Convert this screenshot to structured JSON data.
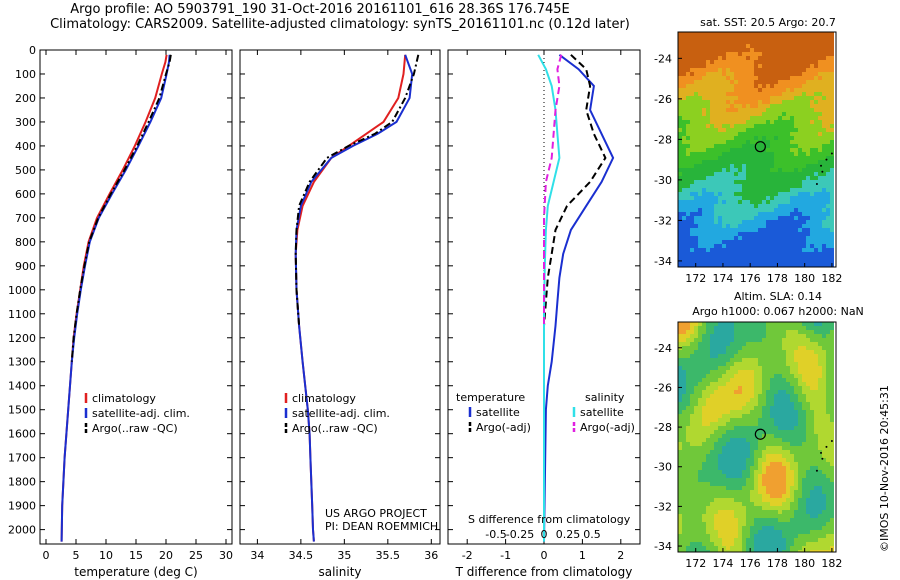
{
  "header": {
    "line1": "Argo profile: AO 5903791_190 31-Oct-2016 20161101_616 28.36S 176.745E",
    "line2": "Climatology: CARS2009. Satellite-adjusted climatology: synTS_20161101.nc (0.12d later)"
  },
  "credit": "©IMOS 10-Nov-2016 20:45:31",
  "colors": {
    "climatology": "#e02020",
    "satellite": "#1a2fd0",
    "argo": "#000000",
    "sal_satellite": "#30e0e8",
    "sal_argo": "#e020e0"
  },
  "chart_data": [
    {
      "id": "temperature",
      "type": "line",
      "xlabel": "temperature (deg C)",
      "ylabel": "",
      "xlim": [
        -1,
        31
      ],
      "ylim": [
        2060,
        0
      ],
      "xticks": [
        0,
        5,
        10,
        15,
        20,
        25,
        30
      ],
      "yticks": [
        0,
        100,
        200,
        300,
        400,
        500,
        600,
        700,
        800,
        900,
        1000,
        1100,
        1200,
        1300,
        1400,
        1500,
        1600,
        1700,
        1800,
        1900,
        2000
      ],
      "legend": [
        "climatology",
        "satellite-adj. clim.",
        "Argo(..raw -QC)"
      ],
      "series": [
        {
          "name": "climatology",
          "style": "solid",
          "color": "climatology",
          "x": [
            20.1,
            19.9,
            19.3,
            18.2,
            16.6,
            14.8,
            12.8,
            10.6,
            8.5,
            7.1,
            6.3,
            5.7,
            5.1,
            4.6,
            4.3,
            4.0,
            3.7,
            3.4,
            3.1,
            2.9,
            2.7,
            2.6
          ],
          "y": [
            20,
            50,
            100,
            200,
            300,
            400,
            500,
            600,
            700,
            800,
            900,
            1000,
            1100,
            1200,
            1300,
            1400,
            1500,
            1600,
            1700,
            1800,
            1900,
            2050
          ]
        },
        {
          "name": "satellite-adj. clim.",
          "style": "solid",
          "color": "satellite",
          "x": [
            20.6,
            20.5,
            20.1,
            19.2,
            17.4,
            15.4,
            13.3,
            11.0,
            8.8,
            7.3,
            6.5,
            5.8,
            5.2,
            4.7,
            4.3,
            4.0,
            3.7,
            3.4,
            3.1,
            2.9,
            2.7,
            2.6
          ],
          "y": [
            20,
            50,
            100,
            200,
            300,
            400,
            500,
            600,
            700,
            800,
            900,
            1000,
            1100,
            1200,
            1300,
            1400,
            1500,
            1600,
            1700,
            1800,
            1900,
            2050
          ]
        },
        {
          "name": "Argo(..raw -QC)",
          "style": "dashdot",
          "color": "argo",
          "x": [
            20.8,
            20.6,
            20.0,
            18.9,
            17.1,
            15.2,
            13.1,
            10.8,
            8.7,
            7.2,
            6.4,
            5.7,
            5.1,
            4.6,
            4.3
          ],
          "y": [
            20,
            50,
            100,
            200,
            300,
            400,
            500,
            600,
            700,
            800,
            900,
            1000,
            1100,
            1200,
            1300
          ]
        }
      ]
    },
    {
      "id": "salinity",
      "type": "line",
      "xlabel": "salinity",
      "ylabel": "",
      "xlim": [
        33.8,
        36.1
      ],
      "ylim": [
        2060,
        0
      ],
      "xticks": [
        34,
        34.5,
        35,
        35.5,
        36
      ],
      "xtick_labels": [
        "34",
        "34.5",
        "35",
        "35.5",
        "36"
      ],
      "legend": [
        "climatology",
        "satellite-adj. clim.",
        "Argo(..raw -QC)"
      ],
      "series": [
        {
          "name": "climatology",
          "style": "solid",
          "color": "climatology",
          "x": [
            35.7,
            35.68,
            35.62,
            35.45,
            35.25,
            35.05,
            34.85,
            34.65,
            34.52,
            34.46,
            34.44,
            34.45,
            34.48,
            34.52,
            34.55,
            34.58,
            34.6,
            34.61,
            34.62,
            34.63,
            34.64,
            34.65
          ],
          "y": [
            20,
            100,
            200,
            300,
            350,
            400,
            450,
            550,
            650,
            750,
            850,
            1000,
            1150,
            1300,
            1400,
            1500,
            1600,
            1700,
            1800,
            1900,
            2000,
            2050
          ]
        },
        {
          "name": "satellite-adj. clim.",
          "style": "solid",
          "color": "satellite",
          "x": [
            35.7,
            35.78,
            35.75,
            35.6,
            35.38,
            35.1,
            34.85,
            34.62,
            34.5,
            34.45,
            34.44,
            34.45,
            34.48,
            34.52,
            34.55,
            34.58,
            34.6,
            34.61,
            34.62,
            34.63,
            34.64,
            34.65
          ],
          "y": [
            20,
            100,
            200,
            300,
            350,
            400,
            450,
            550,
            650,
            750,
            850,
            1000,
            1150,
            1300,
            1400,
            1500,
            1600,
            1700,
            1800,
            1900,
            2000,
            2050
          ]
        },
        {
          "name": "Argo(..raw -QC)",
          "style": "dashdot",
          "color": "argo",
          "x": [
            35.85,
            35.8,
            35.7,
            35.55,
            35.35,
            35.05,
            34.8,
            34.6,
            34.48,
            34.45,
            34.44,
            34.45,
            34.48
          ],
          "y": [
            20,
            100,
            200,
            300,
            350,
            400,
            450,
            550,
            650,
            750,
            850,
            1000,
            1150
          ]
        }
      ],
      "annotation_lines": [
        "US ARGO PROJECT",
        "PI: DEAN ROEMMICH"
      ]
    },
    {
      "id": "difference",
      "type": "line",
      "xlabel": "T difference from climatology",
      "xlabel_top": "S difference from climatology",
      "xlim": [
        -2.5,
        2.5
      ],
      "ylim": [
        2060,
        0
      ],
      "xticks": [
        -2,
        -1,
        0,
        1,
        2
      ],
      "xtick_labels": [
        "-2",
        "-1",
        "0",
        "1",
        "2"
      ],
      "sticks": [
        -0.5,
        -0.25,
        0,
        0.25,
        0.5
      ],
      "stick_labels": [
        "-0.5",
        "-0.25",
        "0",
        "0.25",
        "0.5"
      ],
      "legend_temperature_title": "temperature",
      "legend_salinity_title": "salinity",
      "legend_temperature": [
        "satellite",
        "Argo(-adj)"
      ],
      "legend_salinity": [
        "satellite",
        "Argo(-adj)"
      ],
      "series": [
        {
          "name": "T satellite",
          "style": "solid",
          "color": "satellite",
          "x": [
            0.4,
            0.9,
            1.3,
            1.2,
            1.5,
            1.8,
            1.5,
            1.1,
            0.7,
            0.5,
            0.4,
            0.35,
            0.3,
            0.2,
            0.1,
            0.05,
            0.0
          ],
          "y": [
            20,
            80,
            150,
            250,
            350,
            450,
            550,
            650,
            750,
            850,
            950,
            1050,
            1150,
            1300,
            1400,
            1500,
            2050
          ]
        },
        {
          "name": "T Argo(-adj)",
          "style": "dashed",
          "color": "argo",
          "x": [
            0.7,
            1.1,
            1.2,
            1.1,
            1.3,
            1.6,
            1.2,
            0.6,
            0.3,
            0.2,
            0.1,
            0.05,
            0.0
          ],
          "y": [
            20,
            80,
            150,
            250,
            350,
            450,
            550,
            650,
            750,
            850,
            950,
            1050,
            1150
          ]
        },
        {
          "name": "S satellite",
          "style": "solid",
          "color": "sal_satellite",
          "x": [
            -0.15,
            0.05,
            0.2,
            0.3,
            0.35,
            0.4,
            0.25,
            0.1,
            0.05,
            0.02,
            0.0,
            0.0
          ],
          "y": [
            20,
            80,
            150,
            250,
            350,
            450,
            550,
            650,
            750,
            900,
            1100,
            2050
          ]
        },
        {
          "name": "S Argo(-adj)",
          "style": "dashed",
          "color": "sal_argo",
          "x": [
            0.45,
            0.35,
            0.4,
            0.3,
            0.25,
            0.2,
            0.05,
            0.0,
            0.0,
            0.0
          ],
          "y": [
            20,
            80,
            150,
            250,
            350,
            450,
            550,
            700,
            900,
            1150
          ]
        }
      ]
    },
    {
      "id": "sst_map",
      "type": "heatmap",
      "title": "sat. SST: 20.5  Argo: 20.7",
      "xticks": [
        172,
        174,
        176,
        178,
        180,
        182
      ],
      "yticks": [
        -24,
        -26,
        -28,
        -30,
        -32,
        -34
      ],
      "xlim": [
        170.7,
        182.3
      ],
      "ylim": [
        -34.3,
        -22.7
      ],
      "float_position": [
        176.745,
        -28.36
      ]
    },
    {
      "id": "sla_map",
      "type": "heatmap",
      "title_line1": "Altim. SLA: 0.14",
      "title_line2": "Argo h1000: 0.067  h2000: NaN",
      "xticks": [
        172,
        174,
        176,
        178,
        180,
        182
      ],
      "yticks": [
        -24,
        -26,
        -28,
        -30,
        -32,
        -34
      ],
      "xlim": [
        170.7,
        182.3
      ],
      "ylim": [
        -34.3,
        -22.7
      ],
      "float_position": [
        176.745,
        -28.36
      ]
    }
  ]
}
